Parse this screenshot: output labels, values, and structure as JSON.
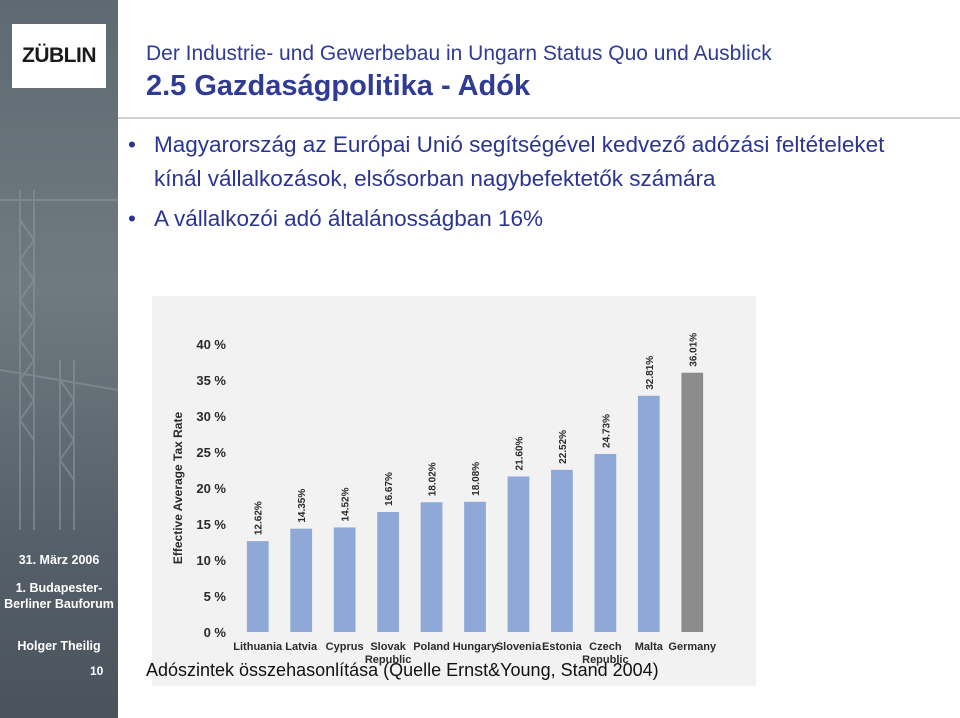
{
  "header": {
    "logo": "ZÜBLIN",
    "subtitle": "Der Industrie- und Gewerbebau in Ungarn  Status Quo und Ausblick",
    "title": "2.5 Gazdaságpolitika - Adók"
  },
  "bullets": [
    "Magyarország az Európai Unió segítségével kedvező adózási feltételeket kínál vállalkozások, elsősorban nagybefektetők számára",
    "A vállalkozói adó általánosságban 16%"
  ],
  "sidebar": {
    "date": "31. März 2006",
    "event": "1. Budapester-Berliner Bauforum",
    "author": "Holger Theilig",
    "page": "10"
  },
  "caption": "Adószintek összehasonlítása (Quelle Ernst&Young, Stand 2004)",
  "colors": {
    "bar": "#8ea8d8",
    "bar_highlight": "#8c8c8c",
    "title": "#2f3b95"
  },
  "chart_data": {
    "type": "bar",
    "ylabel": "Effective Average Tax Rate",
    "ylim": [
      0,
      40
    ],
    "yticks": [
      "0 %",
      "5 %",
      "10 %",
      "15 %",
      "20 %",
      "25 %",
      "30 %",
      "35 %",
      "40 %"
    ],
    "categories": [
      "Lithuania",
      "Latvia",
      "Cyprus",
      "Slovak Republic",
      "Poland",
      "Hungary",
      "Slovenia",
      "Estonia",
      "Czech Republic",
      "Malta",
      "Germany"
    ],
    "values": [
      12.62,
      14.35,
      14.52,
      16.67,
      18.02,
      18.08,
      21.6,
      22.52,
      24.73,
      32.81,
      36.01
    ],
    "labels": [
      "12.62%",
      "14.35%",
      "14.52%",
      "16.67%",
      "18.02%",
      "18.08%",
      "21.60%",
      "22.52%",
      "24.73%",
      "32.81%",
      "36.01%"
    ],
    "highlight": "Germany"
  }
}
